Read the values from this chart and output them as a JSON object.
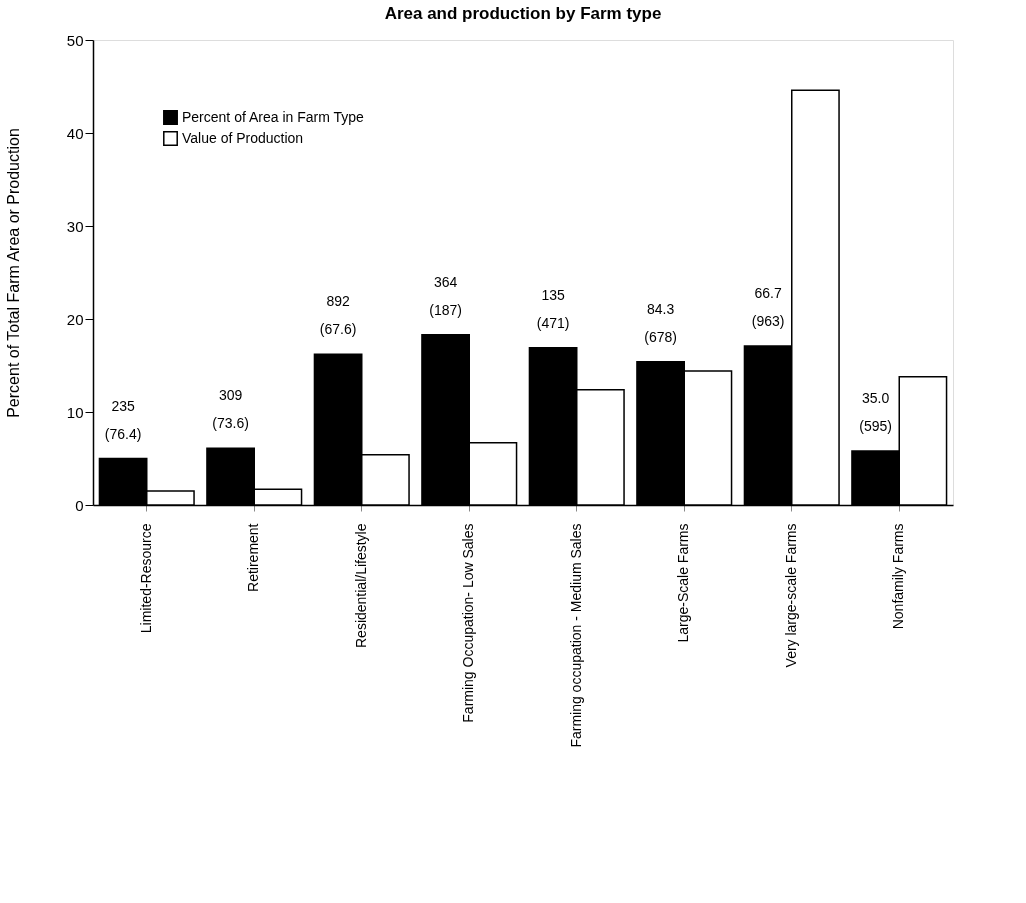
{
  "chart_data": {
    "type": "bar",
    "title": "Area and production by Farm type",
    "ylabel": "Percent of Total Farm Area or Production",
    "categories": [
      "Limited-Resource",
      "Retirement",
      "Residential/Lifestyle",
      "Farming Occupation- Low Sales",
      "Farming occupation - Medium Sales",
      "Large-Scale Farms",
      "Very large-scale Farms",
      "Nonfamily Farms"
    ],
    "series": [
      {
        "name": "Percent of Area in Farm Type",
        "color": "#000000",
        "values": [
          5.0,
          6.1,
          16.2,
          18.3,
          16.9,
          15.4,
          17.1,
          5.8
        ]
      },
      {
        "name": "Value of Production",
        "color": "#ffffff",
        "values": [
          1.5,
          1.7,
          5.4,
          6.7,
          12.4,
          14.4,
          44.6,
          13.8
        ]
      }
    ],
    "ylim": [
      0,
      50
    ],
    "yticks": [
      0,
      10,
      20,
      30,
      40,
      50
    ],
    "grid": false,
    "legend": "top left",
    "annotations": [
      "235",
      "(76.4)",
      "309",
      "(73.6)",
      "892",
      "(67.6)",
      "364",
      "(187)",
      "135",
      "(471)",
      "84.3",
      "(678)",
      "66.7",
      "(963)",
      "35.0",
      "(595)"
    ]
  }
}
